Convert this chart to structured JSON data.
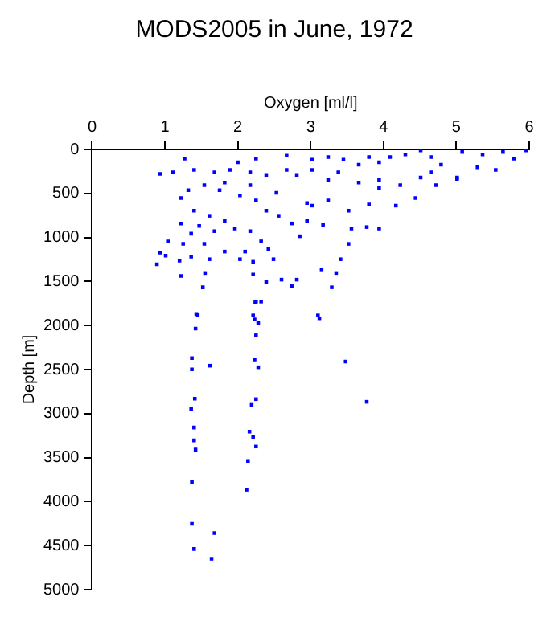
{
  "chart_data": {
    "type": "scatter",
    "title": "MODS2005 in June, 1972",
    "xlabel": "Oxygen [ml/l]",
    "ylabel": "Depth [m]",
    "xlim": [
      0,
      6
    ],
    "xticks": [
      0,
      1,
      2,
      3,
      4,
      5,
      6
    ],
    "ylim": [
      5000,
      0
    ],
    "yticks": [
      0,
      500,
      1000,
      1500,
      2000,
      2500,
      3000,
      3500,
      4000,
      4500,
      5000
    ],
    "grid": false,
    "legend": false,
    "marker": "square",
    "series": [
      {
        "color": "#0000ff",
        "x": [
          4.51,
          5.08,
          5.36,
          5.64,
          5.96,
          5.79,
          5.54,
          5.29,
          5.01,
          4.79,
          4.65,
          4.3,
          4.09,
          3.94,
          3.8,
          3.66,
          3.45,
          3.24,
          3.02,
          2.67,
          2.25,
          2.0,
          1.27,
          0.93,
          1.11,
          1.4,
          1.68,
          1.89,
          2.17,
          2.39,
          2.67,
          2.81,
          3.02,
          3.24,
          3.38,
          3.66,
          3.94,
          4.23,
          4.51,
          4.72,
          5.01,
          4.65,
          3.94,
          4.44,
          4.17,
          3.8,
          3.52,
          3.24,
          3.02,
          2.95,
          2.74,
          3.17,
          3.56,
          3.94,
          3.77,
          3.52,
          3.41,
          3.35,
          3.29,
          3.15,
          2.74,
          2.85,
          1.22,
          1.32,
          1.54,
          1.75,
          2.03,
          2.25,
          2.39,
          2.56,
          1.4,
          1.61,
          1.82,
          1.22,
          1.47,
          1.36,
          1.68,
          1.96,
          2.17,
          2.32,
          1.04,
          1.25,
          1.54,
          1.82,
          2.1,
          2.42,
          0.93,
          1.01,
          1.2,
          1.36,
          1.61,
          2.03,
          2.21,
          2.49,
          0.89,
          1.22,
          1.55,
          2.21,
          2.39,
          2.6,
          2.81,
          1.52,
          2.25,
          2.32,
          1.43,
          2.21,
          3.1,
          2.95,
          2.53,
          2.17,
          1.82,
          1.45,
          1.42,
          1.37,
          1.37,
          1.62,
          1.41,
          1.36,
          1.4,
          1.4,
          1.42,
          1.37,
          1.37,
          1.68,
          1.4,
          1.64,
          2.23,
          2.28,
          2.25,
          2.23,
          2.28,
          2.25,
          2.19,
          2.16,
          2.21,
          2.25,
          2.14,
          2.12,
          3.12,
          3.48,
          3.77,
          2.24
        ],
        "values": [
          12,
          29,
          58,
          29,
          12,
          104,
          232,
          203,
          319,
          174,
          87,
          58,
          87,
          145,
          87,
          174,
          116,
          87,
          116,
          70,
          104,
          145,
          104,
          278,
          261,
          232,
          261,
          232,
          261,
          290,
          232,
          290,
          232,
          348,
          261,
          377,
          348,
          406,
          319,
          406,
          336,
          261,
          435,
          551,
          638,
          626,
          696,
          580,
          638,
          812,
          841,
          858,
          899,
          899,
          882,
          1073,
          1247,
          1404,
          1566,
          1363,
          1554,
          986,
          551,
          464,
          406,
          464,
          522,
          580,
          696,
          754,
          696,
          754,
          812,
          841,
          870,
          957,
          928,
          899,
          928,
          1044,
          1044,
          1073,
          1073,
          1160,
          1160,
          1131,
          1172,
          1206,
          1264,
          1218,
          1247,
          1247,
          1276,
          1247,
          1305,
          1438,
          1404,
          1421,
          1508,
          1479,
          1479,
          1566,
          1728,
          1728,
          1868,
          1885,
          1885,
          609,
          493,
          406,
          377,
          1882,
          2035,
          2370,
          2497,
          2456,
          2830,
          2947,
          3158,
          3304,
          3409,
          3778,
          4252,
          4357,
          4538,
          4649,
          1930,
          1970,
          2111,
          2386,
          2474,
          2836,
          2901,
          3205,
          3269,
          3374,
          3538,
          3865,
          1918,
          2409,
          2866,
          1737
        ]
      }
    ]
  }
}
